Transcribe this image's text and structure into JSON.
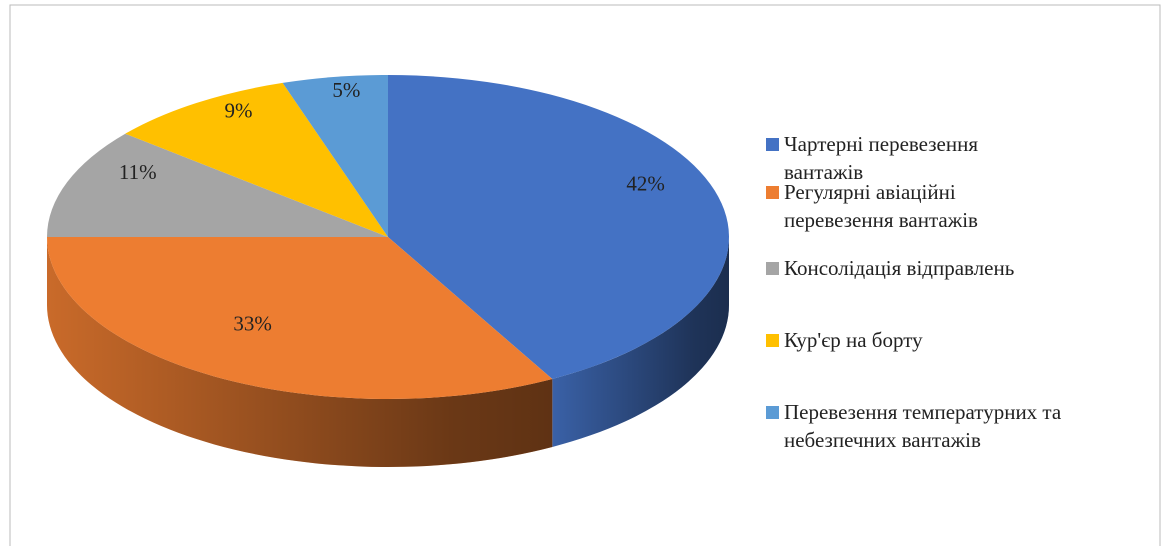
{
  "chart_data": {
    "type": "pie",
    "categories": [
      "Чартерні перевезення вантажів",
      "Регулярні авіаційні перевезення вантажів",
      "Консолідація відправлень",
      "Кур'єр на борту",
      "Перевезення температурних та небезпечних вантажів"
    ],
    "values": [
      42,
      33,
      11,
      9,
      5
    ],
    "value_labels": [
      "42%",
      "33%",
      "11%",
      "9%",
      "5%"
    ],
    "colors": [
      "#4472c4",
      "#ed7d31",
      "#a5a5a5",
      "#ffc000",
      "#5b9bd5"
    ],
    "legend": "right"
  }
}
